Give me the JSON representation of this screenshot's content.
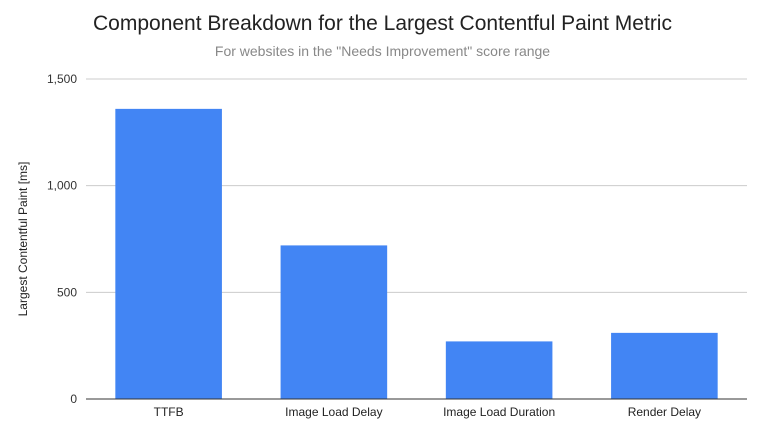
{
  "chart_data": {
    "type": "bar",
    "title": "Component Breakdown for the Largest Contentful Paint Metric",
    "subtitle": "For websites in the \"Needs Improvement\" score range",
    "xlabel": "",
    "ylabel": "Largest Contentful Paint [ms]",
    "categories": [
      "TTFB",
      "Image Load Delay",
      "Image Load Duration",
      "Render Delay"
    ],
    "values": [
      1360,
      720,
      270,
      310
    ],
    "ylim": [
      0,
      1500
    ],
    "yticks": [
      0,
      500,
      1000,
      1500
    ],
    "ytick_labels": [
      "0",
      "500",
      "1,000",
      "1,500"
    ],
    "grid": true,
    "legend": "none",
    "bar_color": "#4285f4"
  }
}
